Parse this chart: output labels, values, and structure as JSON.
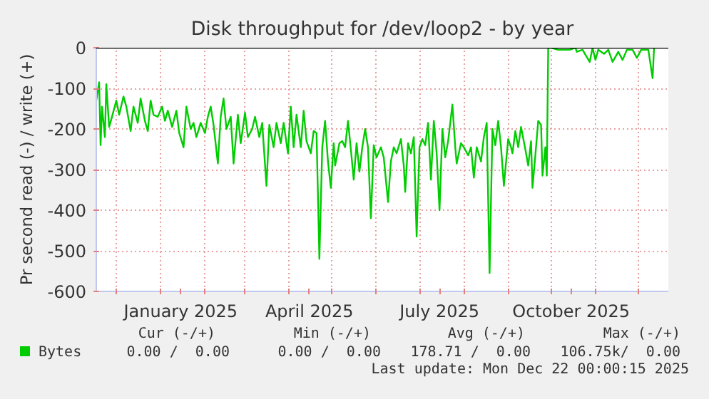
{
  "chart_data": {
    "type": "line",
    "title": "Disk throughput for /dev/loop2 - by year",
    "ylabel": "Pr second read (-) / write (+)",
    "x": [
      "2024-11-17",
      "2024-11-19",
      "2024-11-20",
      "2024-11-21",
      "2024-11-23",
      "2024-11-24",
      "2024-11-26",
      "2024-11-28",
      "2024-12-01",
      "2024-12-03",
      "2024-12-06",
      "2024-12-08",
      "2024-12-11",
      "2024-12-13",
      "2024-12-16",
      "2024-12-18",
      "2024-12-21",
      "2024-12-23",
      "2024-12-25",
      "2024-12-27",
      "2024-12-30",
      "2025-01-02",
      "2025-01-04",
      "2025-01-06",
      "2025-01-09",
      "2025-01-12",
      "2025-01-14",
      "2025-01-17",
      "2025-01-19",
      "2025-01-22",
      "2025-01-24",
      "2025-01-26",
      "2025-01-29",
      "2025-02-01",
      "2025-02-03",
      "2025-02-05",
      "2025-02-07",
      "2025-02-10",
      "2025-02-12",
      "2025-02-14",
      "2025-02-16",
      "2025-02-19",
      "2025-02-21",
      "2025-02-24",
      "2025-02-26",
      "2025-03-01",
      "2025-03-03",
      "2025-03-06",
      "2025-03-08",
      "2025-03-11",
      "2025-03-13",
      "2025-03-16",
      "2025-03-18",
      "2025-03-21",
      "2025-03-23",
      "2025-03-26",
      "2025-03-28",
      "2025-03-31",
      "2025-04-02",
      "2025-04-04",
      "2025-04-06",
      "2025-04-09",
      "2025-04-11",
      "2025-04-13",
      "2025-04-16",
      "2025-04-18",
      "2025-04-20",
      "2025-04-22",
      "2025-04-24",
      "2025-04-26",
      "2025-04-28",
      "2025-04-30",
      "2025-05-02",
      "2025-05-03",
      "2025-05-06",
      "2025-05-08",
      "2025-05-10",
      "2025-05-12",
      "2025-05-14",
      "2025-05-16",
      "2025-05-18",
      "2025-05-20",
      "2025-05-22",
      "2025-05-24",
      "2025-05-26",
      "2025-05-28",
      "2025-05-30",
      "2025-06-01",
      "2025-06-04",
      "2025-06-06",
      "2025-06-09",
      "2025-06-11",
      "2025-06-13",
      "2025-06-15",
      "2025-06-18",
      "2025-06-20",
      "2025-06-21",
      "2025-06-23",
      "2025-06-25",
      "2025-06-27",
      "2025-06-29",
      "2025-07-01",
      "2025-07-03",
      "2025-07-05",
      "2025-07-07",
      "2025-07-09",
      "2025-07-11",
      "2025-07-13",
      "2025-07-15",
      "2025-07-17",
      "2025-07-19",
      "2025-07-21",
      "2025-07-24",
      "2025-07-26",
      "2025-07-27",
      "2025-07-30",
      "2025-08-01",
      "2025-08-04",
      "2025-08-06",
      "2025-08-08",
      "2025-08-10",
      "2025-08-13",
      "2025-08-15",
      "2025-08-17",
      "2025-08-19",
      "2025-08-21",
      "2025-08-23",
      "2025-08-25",
      "2025-08-27",
      "2025-08-29",
      "2025-09-01",
      "2025-09-03",
      "2025-09-04",
      "2025-09-06",
      "2025-09-08",
      "2025-09-10",
      "2025-09-13",
      "2025-09-15",
      "2025-09-17",
      "2025-09-18",
      "2025-09-20",
      "2025-09-22",
      "2025-09-24",
      "2025-09-25",
      "2025-09-27",
      "2025-09-28",
      "2025-09-29",
      "2025-10-01",
      "2025-10-06",
      "2025-10-14",
      "2025-10-18",
      "2025-10-19",
      "2025-10-23",
      "2025-10-28",
      "2025-10-30",
      "2025-11-01",
      "2025-11-03",
      "2025-11-07",
      "2025-11-10",
      "2025-11-13",
      "2025-11-17",
      "2025-11-20",
      "2025-11-23",
      "2025-11-27",
      "2025-11-30",
      "2025-12-03",
      "2025-12-08",
      "2025-12-11",
      "2025-12-12"
    ],
    "series": [
      {
        "name": "Bytes",
        "color": "#00cc00",
        "values": [
          -130,
          -85,
          -240,
          -145,
          -220,
          -90,
          -195,
          -170,
          -130,
          -165,
          -120,
          -145,
          -205,
          -145,
          -185,
          -125,
          -180,
          -205,
          -130,
          -165,
          -170,
          -145,
          -180,
          -155,
          -195,
          -155,
          -210,
          -245,
          -145,
          -200,
          -185,
          -220,
          -185,
          -210,
          -170,
          -145,
          -190,
          -285,
          -170,
          -125,
          -200,
          -170,
          -285,
          -165,
          -235,
          -160,
          -220,
          -200,
          -170,
          -220,
          -185,
          -340,
          -190,
          -245,
          -185,
          -235,
          -185,
          -260,
          -145,
          -245,
          -165,
          -245,
          -155,
          -230,
          -260,
          -205,
          -210,
          -520,
          -245,
          -180,
          -280,
          -345,
          -235,
          -290,
          -235,
          -230,
          -245,
          -180,
          -250,
          -325,
          -235,
          -305,
          -245,
          -200,
          -245,
          -420,
          -240,
          -270,
          -245,
          -270,
          -380,
          -280,
          -245,
          -260,
          -225,
          -290,
          -355,
          -235,
          -260,
          -220,
          -465,
          -245,
          -225,
          -240,
          -185,
          -325,
          -180,
          -260,
          -400,
          -200,
          -270,
          -230,
          -140,
          -245,
          -285,
          -235,
          -245,
          -265,
          -245,
          -320,
          -245,
          -280,
          -220,
          -185,
          -555,
          -200,
          -240,
          -180,
          -245,
          -340,
          -225,
          -245,
          -260,
          -205,
          -245,
          -195,
          -250,
          -290,
          -230,
          -345,
          -265,
          -180,
          -190,
          -315,
          -245,
          -315,
          0,
          0,
          -5,
          -5,
          0,
          -10,
          -5,
          -35,
          0,
          -30,
          -5,
          -15,
          -5,
          -35,
          -10,
          -30,
          -5,
          -5,
          -25,
          -5,
          -5,
          -75,
          0
        ]
      }
    ],
    "xlim": [
      "2024-11-17",
      "2025-12-22"
    ],
    "xticks": [
      {
        "value": "2024-12-01",
        "label": null
      },
      {
        "value": "2025-01-01",
        "label": null
      },
      {
        "value": "2025-01-15",
        "label": "January 2025"
      },
      {
        "value": "2025-02-01",
        "label": null
      },
      {
        "value": "2025-03-01",
        "label": null
      },
      {
        "value": "2025-04-01",
        "label": null
      },
      {
        "value": "2025-04-15",
        "label": "April 2025"
      },
      {
        "value": "2025-05-01",
        "label": null
      },
      {
        "value": "2025-06-01",
        "label": null
      },
      {
        "value": "2025-07-01",
        "label": null
      },
      {
        "value": "2025-07-15",
        "label": "July 2025"
      },
      {
        "value": "2025-08-01",
        "label": null
      },
      {
        "value": "2025-09-01",
        "label": null
      },
      {
        "value": "2025-10-01",
        "label": null
      },
      {
        "value": "2025-10-15",
        "label": "October 2025"
      },
      {
        "value": "2025-11-01",
        "label": null
      },
      {
        "value": "2025-12-01",
        "label": null
      }
    ],
    "ylim": [
      -600,
      0
    ],
    "yticks": [
      -600,
      -500,
      -400,
      -300,
      -200,
      -100,
      0
    ],
    "grid": true,
    "legend": "bottom",
    "marker": "none",
    "line_style": "solid",
    "ref_lines": [
      {
        "axis": "y",
        "value": 0,
        "label": null,
        "color": "#000000"
      }
    ],
    "annotations": [
      "Cur (-/+)",
      "Min (-/+)",
      "Avg (-/+)",
      "Max (-/+)",
      "0.00 /  0.00",
      "0.00 /  0.00",
      "178.71 /  0.00",
      "106.75k/  0.00",
      "Last update: Mon Dec 22 00:00:15 2025"
    ]
  }
}
